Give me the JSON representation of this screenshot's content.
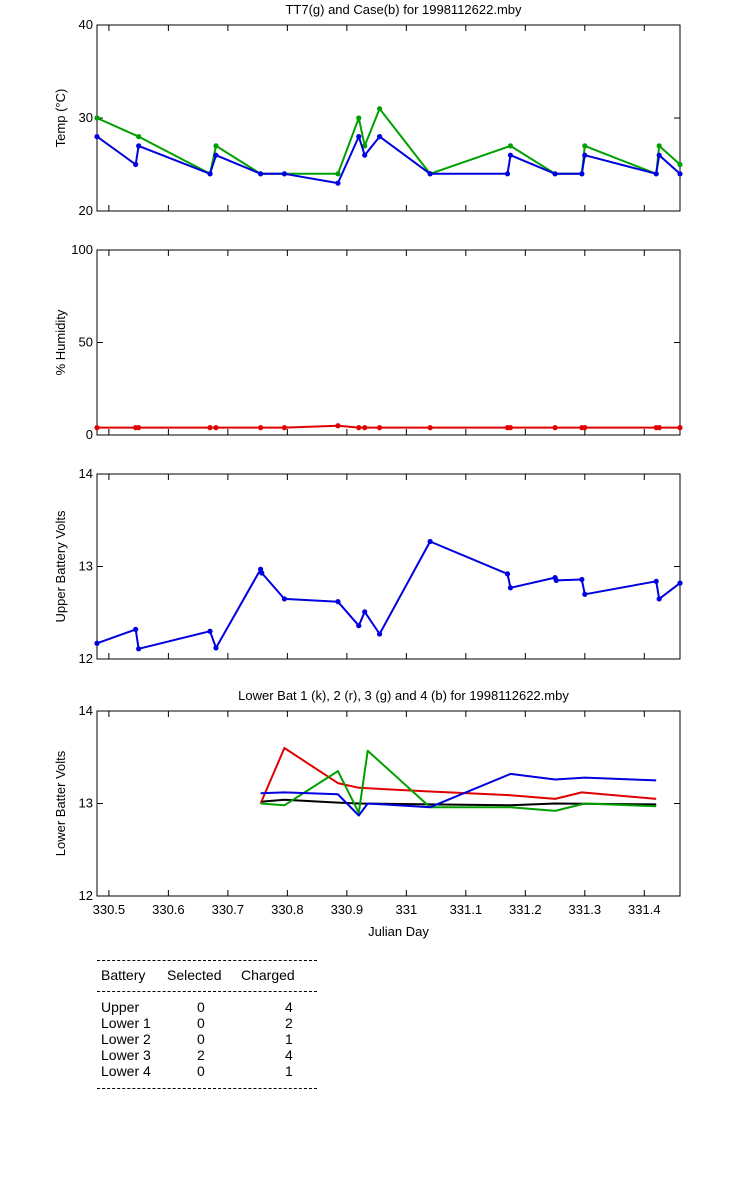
{
  "chart_data": [
    {
      "type": "line",
      "title": "TT7(g) and Case(b) for 1998112622.mby",
      "xlabel": "",
      "ylabel": "Temp  (°C)",
      "xlim": [
        330.48,
        331.46
      ],
      "ylim": [
        20,
        40
      ],
      "yticks": [
        20,
        30,
        40
      ],
      "ytick_labels": [
        "20",
        "30",
        "40"
      ],
      "grid": false,
      "series": [
        {
          "name": "TT7",
          "color": "#00a000",
          "markers": true,
          "x": [
            330.48,
            330.55,
            330.67,
            330.68,
            330.755,
            330.795,
            330.885,
            330.92,
            330.93,
            330.955,
            331.04,
            331.175,
            331.25,
            331.295,
            331.3,
            331.42,
            331.425,
            331.46
          ],
          "y": [
            30,
            28,
            24,
            27,
            24,
            24,
            24,
            30,
            27,
            31,
            24,
            27,
            24,
            24,
            27,
            24,
            27,
            25
          ]
        },
        {
          "name": "Case",
          "color": "#0000e0",
          "markers": true,
          "x": [
            330.48,
            330.545,
            330.55,
            330.67,
            330.68,
            330.755,
            330.795,
            330.885,
            330.92,
            330.93,
            330.955,
            331.04,
            331.17,
            331.175,
            331.25,
            331.295,
            331.3,
            331.42,
            331.425,
            331.46
          ],
          "y": [
            28,
            25,
            27,
            24,
            26,
            24,
            24,
            23,
            28,
            26,
            28,
            24,
            24,
            26,
            24,
            24,
            26,
            24,
            26,
            24
          ]
        }
      ]
    },
    {
      "type": "line",
      "title": "",
      "xlabel": "",
      "ylabel": "% Humidity",
      "xlim": [
        330.48,
        331.46
      ],
      "ylim": [
        0,
        100
      ],
      "yticks": [
        0,
        50,
        100
      ],
      "ytick_labels": [
        "0",
        "50",
        "100"
      ],
      "grid": false,
      "series": [
        {
          "name": "Humidity",
          "color": "#e00000",
          "markers": true,
          "x": [
            330.48,
            330.545,
            330.55,
            330.67,
            330.68,
            330.755,
            330.795,
            330.885,
            330.92,
            330.93,
            330.955,
            331.04,
            331.17,
            331.175,
            331.25,
            331.295,
            331.3,
            331.42,
            331.425,
            331.46
          ],
          "y": [
            4,
            4,
            4,
            4,
            4,
            4,
            4,
            5,
            4,
            4,
            4,
            4,
            4,
            4,
            4,
            4,
            4,
            4,
            4,
            4
          ]
        }
      ]
    },
    {
      "type": "line",
      "title": "",
      "xlabel": "",
      "ylabel": "Upper Battery Volts",
      "xlim": [
        330.48,
        331.46
      ],
      "ylim": [
        12,
        14
      ],
      "yticks": [
        12,
        13,
        14
      ],
      "ytick_labels": [
        "12",
        "13",
        "14"
      ],
      "grid": false,
      "series": [
        {
          "name": "Upper",
          "color": "#0000e0",
          "markers": true,
          "x": [
            330.48,
            330.545,
            330.55,
            330.67,
            330.68,
            330.755,
            330.757,
            330.795,
            330.885,
            330.92,
            330.93,
            330.955,
            331.04,
            331.17,
            331.175,
            331.25,
            331.252,
            331.295,
            331.3,
            331.42,
            331.425,
            331.46
          ],
          "y": [
            12.17,
            12.32,
            12.11,
            12.3,
            12.12,
            12.97,
            12.93,
            12.65,
            12.62,
            12.36,
            12.51,
            12.27,
            13.27,
            12.92,
            12.77,
            12.88,
            12.85,
            12.86,
            12.7,
            12.84,
            12.65,
            12.82
          ]
        }
      ]
    },
    {
      "type": "line",
      "title": "Lower Bat 1 (k), 2 (r), 3 (g) and 4 (b) for 1998112622.mby",
      "xlabel": "Julian Day",
      "ylabel": "Lower Batter Volts",
      "xlim": [
        330.48,
        331.46
      ],
      "ylim": [
        12,
        14
      ],
      "yticks": [
        12,
        13,
        14
      ],
      "ytick_labels": [
        "12",
        "13",
        "14"
      ],
      "xticks": [
        330.5,
        330.6,
        330.7,
        330.8,
        330.9,
        331,
        331.1,
        331.2,
        331.3,
        331.4
      ],
      "xtick_labels": [
        "330.5",
        "330.6",
        "330.7",
        "330.8",
        "330.9",
        "331",
        "331.1",
        "331.2",
        "331.3",
        "331.4"
      ],
      "grid": false,
      "series": [
        {
          "name": "Lower 1",
          "color": "#000000",
          "markers": false,
          "x": [
            330.755,
            330.795,
            330.885,
            330.92,
            331.04,
            331.175,
            331.25,
            331.42
          ],
          "y": [
            13.02,
            13.04,
            13.01,
            13.0,
            12.99,
            12.98,
            13.0,
            12.99
          ]
        },
        {
          "name": "Lower 2",
          "color": "#e00000",
          "markers": false,
          "x": [
            330.755,
            330.795,
            330.885,
            330.92,
            331.04,
            331.175,
            331.25,
            331.295,
            331.42
          ],
          "y": [
            13.0,
            13.6,
            13.22,
            13.17,
            13.13,
            13.09,
            13.05,
            13.12,
            13.05
          ]
        },
        {
          "name": "Lower 3",
          "color": "#00a000",
          "markers": false,
          "x": [
            330.755,
            330.795,
            330.885,
            330.92,
            330.935,
            331.04,
            331.175,
            331.25,
            331.3,
            331.42
          ],
          "y": [
            13.0,
            12.98,
            13.35,
            12.9,
            13.57,
            12.96,
            12.96,
            12.92,
            13.0,
            12.97
          ]
        },
        {
          "name": "Lower 4",
          "color": "#0000e0",
          "markers": false,
          "x": [
            330.755,
            330.795,
            330.885,
            330.92,
            330.935,
            331.04,
            331.175,
            331.25,
            331.3,
            331.42
          ],
          "y": [
            13.11,
            13.12,
            13.1,
            12.87,
            13.0,
            12.96,
            13.32,
            13.26,
            13.28,
            13.25
          ]
        }
      ]
    }
  ],
  "battery_table": {
    "headers": [
      "Battery",
      "Selected",
      "Charged"
    ],
    "rows": [
      {
        "battery": "Upper",
        "selected": "0",
        "charged": "4"
      },
      {
        "battery": "Lower 1",
        "selected": "0",
        "charged": "2"
      },
      {
        "battery": "Lower 2",
        "selected": "0",
        "charged": "1"
      },
      {
        "battery": "Lower 3",
        "selected": "2",
        "charged": "4"
      },
      {
        "battery": "Lower 4",
        "selected": "0",
        "charged": "1"
      }
    ]
  }
}
